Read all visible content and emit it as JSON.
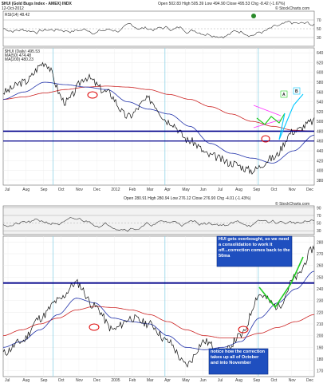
{
  "colors": {
    "price": "#111111",
    "ma50": "#2233aa",
    "ma200": "#cc2222",
    "rsi": "#333333",
    "support": "#00008b",
    "vgrid": "#8fd3e6",
    "projection": "#00c8ff",
    "projection_green": "#22cc22",
    "wedge": "#ff33ff",
    "circle": "#dd0000",
    "note_bg": "#1f4fbf",
    "rsi_bg": "#f2f2f2"
  },
  "top": {
    "title": "$HUI (Gold Bugs Index - AMEX) INDX",
    "subtitle": "12-Oct-2012",
    "header_stats": "Open 502.83  High 505.39  Low 494.90  Close 495.53  Chg -8.42 (-1.67%)",
    "watermark": "© StockCharts.com",
    "rsi_label": "RSI(14) 48.42",
    "price_label": "$HUI (Daily) 495.53",
    "ma50_label": "MA(50) 474.48",
    "ma200_label": "MA(200) 480.23",
    "annotation_a": "A",
    "annotation_b": "B",
    "x_ticks": [
      "Jul",
      "Aug",
      "Sep",
      "Oct",
      "Nov",
      "Dec",
      "2012",
      "Feb",
      "Mar",
      "Apr",
      "May",
      "Jun",
      "Jul",
      "Aug",
      "Sep",
      "Oct",
      "Nov",
      "Dec"
    ]
  },
  "bottom": {
    "header_stats": "Open 280.91  High 280.94  Low 276.12  Close 276.90  Chg -4.01 (-1.43%)",
    "watermark": "© StockCharts.com",
    "note_1": "HUI gets overbought, so we need a consolidation to work it off...correction comes back to the 50ma",
    "note_2": "notice how the correction takes up all of October and into November",
    "x_ticks": [
      "Jul",
      "Aug",
      "Sep",
      "Oct",
      "Nov",
      "Dec",
      "2005",
      "Feb",
      "Mar",
      "Apr",
      "May",
      "Jun",
      "Jul",
      "Aug",
      "Sep",
      "Oct",
      "Nov",
      "Dec"
    ]
  },
  "chart_data": [
    {
      "type": "line",
      "title": "$HUI (Gold Bugs Index - AMEX) INDX",
      "panel": "RSI",
      "series": [
        {
          "name": "RSI(14) 48.42"
        }
      ],
      "y_ticks": [
        30,
        50,
        70
      ],
      "ylim": [
        10,
        90
      ]
    },
    {
      "type": "line",
      "panel": "price",
      "x": [
        "2011-07",
        "2011-08",
        "2011-09",
        "2011-10",
        "2011-11",
        "2011-12",
        "2012-01",
        "2012-02",
        "2012-03",
        "2012-04",
        "2012-05",
        "2012-06",
        "2012-07",
        "2012-08",
        "2012-09",
        "2012-10"
      ],
      "series": [
        {
          "name": "$HUI (Daily) 495.53",
          "values": [
            560,
            580,
            620,
            540,
            590,
            560,
            510,
            545,
            500,
            460,
            430,
            415,
            400,
            425,
            480,
            500
          ]
        },
        {
          "name": "MA(50) 474.48",
          "values": [
            545,
            560,
            580,
            575,
            570,
            565,
            540,
            525,
            515,
            490,
            455,
            435,
            425,
            415,
            440,
            472
          ]
        },
        {
          "name": "MA(200) 480.23",
          "values": [
            545,
            550,
            558,
            565,
            570,
            572,
            570,
            565,
            555,
            545,
            530,
            515,
            500,
            490,
            482,
            480
          ]
        }
      ],
      "support_level": 480,
      "lower_support_level": 460,
      "y_ticks": [
        380,
        400,
        420,
        440,
        460,
        480,
        500,
        520,
        540,
        560,
        580,
        600,
        620,
        640
      ],
      "ylim": [
        370,
        650
      ],
      "grid": true
    },
    {
      "type": "line",
      "panel": "RSI",
      "y_ticks": [
        30,
        50,
        70,
        90
      ],
      "ylim": [
        20,
        95
      ]
    },
    {
      "type": "line",
      "panel": "price",
      "x": [
        "2004-07",
        "2004-08",
        "2004-09",
        "2004-10",
        "2004-11",
        "2004-12",
        "2005-01",
        "2005-02",
        "2005-03",
        "2005-04",
        "2005-05",
        "2005-06",
        "2005-07",
        "2005-08",
        "2005-09",
        "2005-10",
        "2005-11",
        "2005-12"
      ],
      "series": [
        {
          "name": "price",
          "values": [
            185,
            195,
            215,
            230,
            245,
            225,
            205,
            215,
            210,
            195,
            175,
            195,
            185,
            200,
            235,
            225,
            250,
            275
          ]
        },
        {
          "name": "ma50",
          "values": [
            190,
            195,
            205,
            218,
            232,
            228,
            215,
            212,
            210,
            200,
            190,
            188,
            190,
            195,
            215,
            228,
            240,
            255
          ]
        },
        {
          "name": "ma200",
          "values": [
            200,
            205,
            210,
            215,
            222,
            225,
            224,
            222,
            218,
            212,
            205,
            200,
            198,
            198,
            202,
            207,
            212,
            218
          ]
        }
      ],
      "support_level": 245,
      "y_ticks": [
        170,
        180,
        190,
        200,
        210,
        220,
        230,
        240,
        250,
        260,
        270,
        280
      ],
      "ylim": [
        165,
        285
      ],
      "grid": true
    }
  ]
}
